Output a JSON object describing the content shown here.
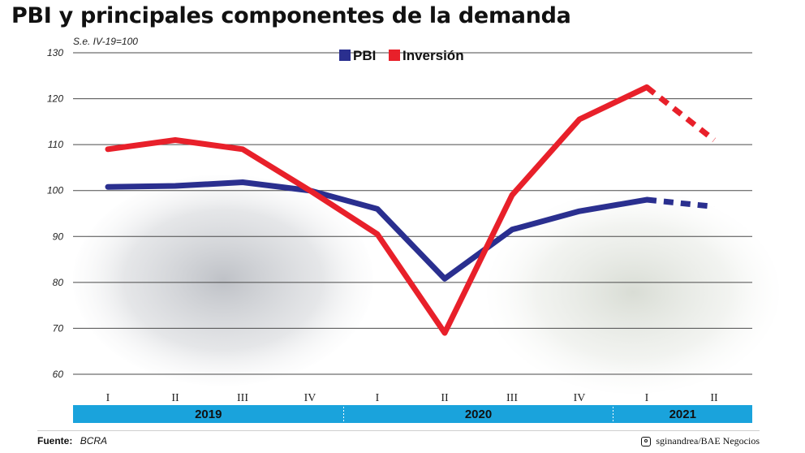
{
  "title": "PBI y principales componentes de la demanda",
  "footer": {
    "source_label": "Fuente:",
    "source": "BCRA",
    "credit": "sginandrea/BAE Negocios"
  },
  "chart_data": {
    "type": "line",
    "title": "PBI y principales componentes de la demanda",
    "subtitle": "S.e. IV-19=100",
    "ylim": [
      60,
      130
    ],
    "yticks": [
      60,
      70,
      80,
      90,
      100,
      110,
      120,
      130
    ],
    "categories": [
      "I",
      "II",
      "III",
      "IV",
      "I",
      "II",
      "III",
      "IV",
      "I",
      "II"
    ],
    "years": [
      {
        "label": "2019",
        "span": 4
      },
      {
        "label": "2020",
        "span": 4
      },
      {
        "label": "2021",
        "span": 2
      }
    ],
    "legend_position": "top-center",
    "grid": true,
    "series": [
      {
        "name": "PBI",
        "color": "#2a2f8f",
        "values": [
          100.8,
          101,
          101.8,
          100,
          96,
          80.8,
          91.5,
          95.5,
          98,
          96.5
        ],
        "dashed_from_index": 8
      },
      {
        "name": "Inversión",
        "color": "#e8202a",
        "values": [
          109,
          111,
          109,
          100,
          90.5,
          69,
          99,
          115.5,
          122.5,
          111
        ],
        "dashed_from_index": 8
      }
    ],
    "colors": {
      "year_band": "#1aa3dc"
    }
  }
}
